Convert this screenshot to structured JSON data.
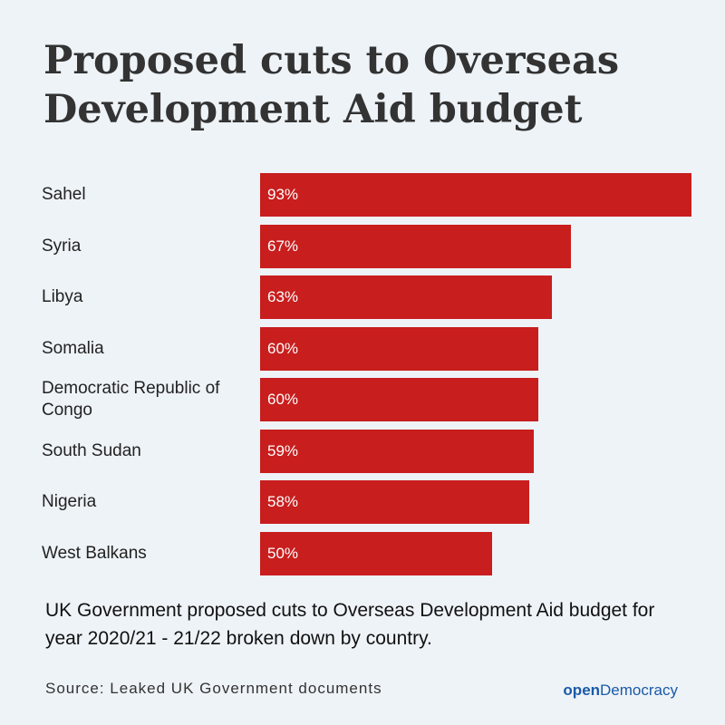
{
  "chart_data": {
    "type": "bar",
    "orientation": "horizontal",
    "title": "Proposed cuts to Overseas Development Aid budget",
    "categories": [
      "Sahel",
      "Syria",
      "Libya",
      "Somalia",
      "Democratic Republic of Congo",
      "South Sudan",
      "Nigeria",
      "West Balkans"
    ],
    "values": [
      93,
      67,
      63,
      60,
      60,
      59,
      58,
      50
    ],
    "value_labels": [
      "93%",
      "67%",
      "63%",
      "60%",
      "60%",
      "59%",
      "58%",
      "50%"
    ],
    "color": "#c81e1e"
  },
  "caption": "UK Government proposed cuts to Overseas Development Aid budget for year 2020/21 - 21/22 broken down by country.",
  "source": "Source: Leaked UK Government documents",
  "logo": {
    "bold": "open",
    "regular": "Democracy"
  }
}
